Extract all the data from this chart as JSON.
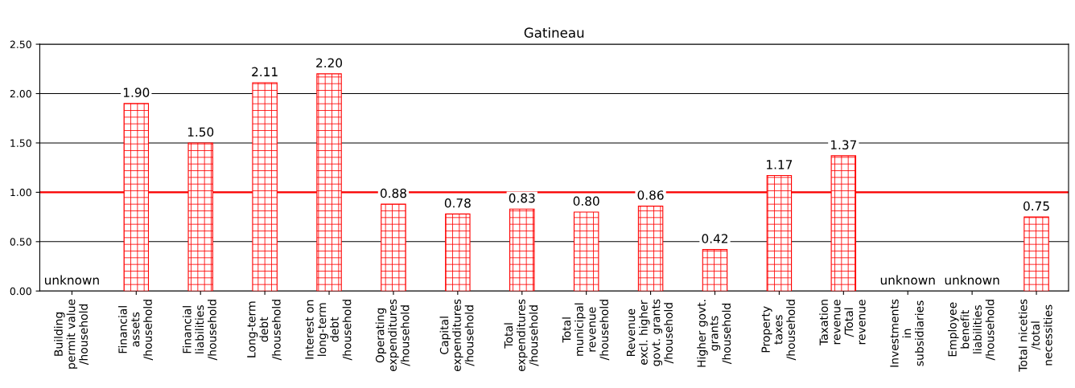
{
  "chart_data": {
    "type": "bar",
    "title": "Gatineau",
    "categories": [
      "Building\npermit value\n/household",
      "Financial\nassets\n/household",
      "Financial\nliabilities\n/household",
      "Long-term\ndebt\n/household",
      "Interest on\nlong-term\ndebt\n/household",
      "Operating\nexpenditures\n/household",
      "Capital\nexpenditures\n/household",
      "Total\nexpenditures\n/household",
      "Total\nmunicipal\nrevenue\n/household",
      "Revenue\nexcl. higher\ngovt. grants\n/household",
      "Higher govt.\ngrants\n/household",
      "Property\ntaxes\n/household",
      "Taxation\nrevenue\n/Total\nrevenue",
      "Investments\nin\nsubsidiaries",
      "Employee\nbenefit\nliabilities\n/household",
      "Total niceties\n/total\nnecessities"
    ],
    "series": [
      {
        "color": "#ff0000",
        "values": [
          null,
          1.9,
          1.5,
          2.11,
          2.2,
          0.88,
          0.78,
          0.83,
          0.8,
          0.86,
          0.42,
          1.17,
          1.37,
          null,
          null,
          0.75
        ],
        "value_labels": [
          "unknown",
          "1.90",
          "1.50",
          "2.11",
          "2.20",
          "0.88",
          "0.78",
          "0.83",
          "0.80",
          "0.86",
          "0.42",
          "1.17",
          "1.37",
          "unknown",
          "unknown",
          "0.75"
        ]
      }
    ],
    "ylim": [
      0,
      2.5
    ],
    "yticks": [
      {
        "value": 0,
        "label": "0.00"
      },
      {
        "value": 0.5,
        "label": "0.50"
      },
      {
        "value": 1,
        "label": "1.00"
      },
      {
        "value": 1.5,
        "label": "1.50"
      },
      {
        "value": 2,
        "label": "2.00"
      },
      {
        "value": 2.5,
        "label": "2.50"
      }
    ],
    "grid": "y",
    "legend": false,
    "ref_lines": [
      {
        "axis": "y",
        "value": 1.0,
        "color": "#ff0000"
      }
    ]
  }
}
